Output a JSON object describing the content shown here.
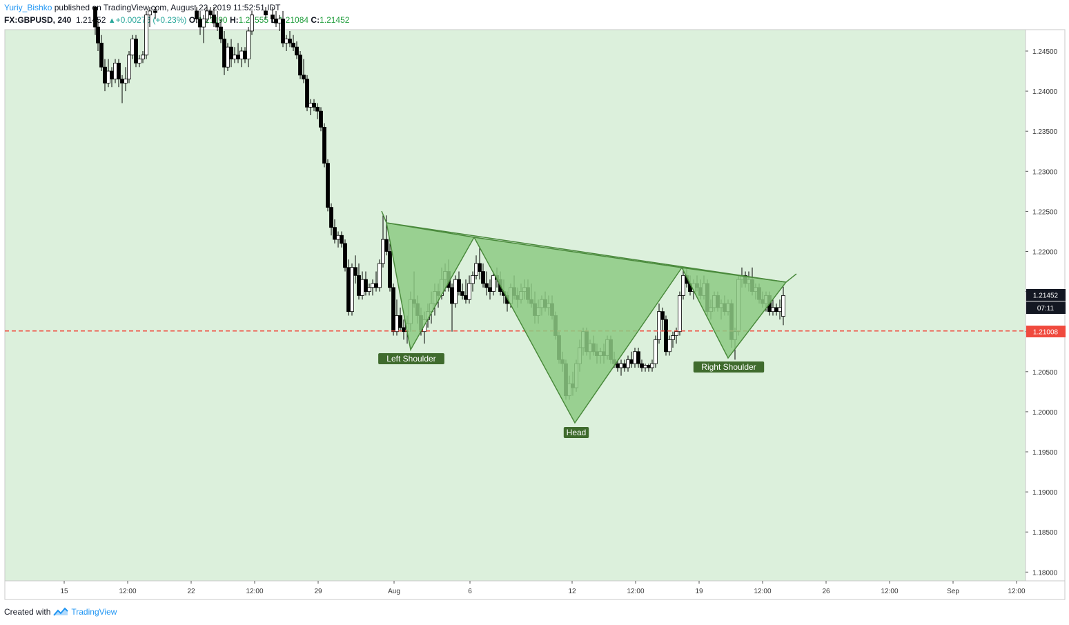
{
  "header": {
    "author": "Yuriy_Bishko",
    "published": "published on TradingView.com, August 22, 2019 11:52:51 IDT",
    "symbol": "FX:GBPUSD, 240",
    "last": "1.21452",
    "change": "+0.00276 (+0.23%)",
    "o_label": "O:",
    "o_value": "1.21190",
    "h_label": "H:",
    "h_value": "1.21555",
    "l_label": "L:",
    "l_value": "1.21084",
    "c_label": "C:",
    "c_value": "1.21452"
  },
  "footer": {
    "created_with": "Created with",
    "brand": "TradingView"
  },
  "colors": {
    "plot_bg": "#dcf0dc",
    "pattern_fill": "#8dca84",
    "pattern_stroke": "#4a8a3c",
    "label_bg": "#3f6b2d",
    "hline": "#f04a3e",
    "price_tag_bg": "#131722"
  },
  "price_badges": {
    "last_price": "1.21452",
    "countdown": "07:11",
    "line_price": "1.21008"
  },
  "chart_data": {
    "type": "candlestick",
    "symbol": "FX:GBPUSD",
    "timeframe": "240",
    "y_ticks": [
      "1.24500",
      "1.24000",
      "1.23500",
      "1.23000",
      "1.22500",
      "1.22000",
      "1.21500",
      "1.21000",
      "1.20500",
      "1.20000",
      "1.19500",
      "1.19000",
      "1.18500",
      "1.18000"
    ],
    "x_ticks": [
      "15",
      "12:00",
      "22",
      "12:00",
      "29",
      "Aug",
      "6",
      "12",
      "12:00",
      "19",
      "12:00",
      "26",
      "12:00",
      "Sep",
      "12:00"
    ],
    "ylim": [
      1.178,
      1.2505
    ],
    "horizontal_line": 1.21008,
    "pattern_labels": [
      "Left Shoulder",
      "Head",
      "Right Shoulder"
    ]
  }
}
